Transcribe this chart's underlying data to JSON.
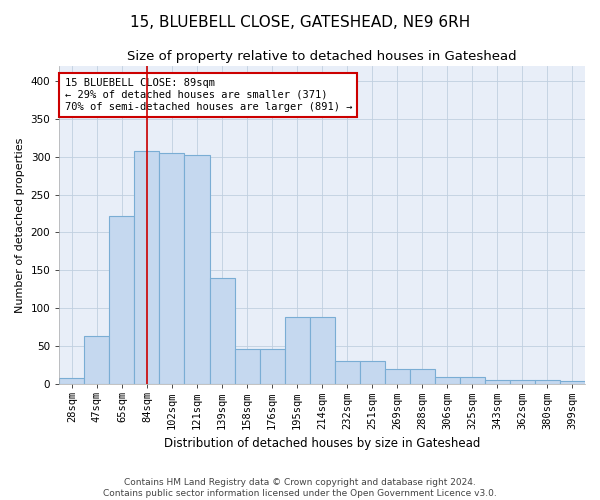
{
  "title": "15, BLUEBELL CLOSE, GATESHEAD, NE9 6RH",
  "subtitle": "Size of property relative to detached houses in Gateshead",
  "xlabel": "Distribution of detached houses by size in Gateshead",
  "ylabel": "Number of detached properties",
  "categories": [
    "28sqm",
    "47sqm",
    "65sqm",
    "84sqm",
    "102sqm",
    "121sqm",
    "139sqm",
    "158sqm",
    "176sqm",
    "195sqm",
    "214sqm",
    "232sqm",
    "251sqm",
    "269sqm",
    "288sqm",
    "306sqm",
    "325sqm",
    "343sqm",
    "362sqm",
    "380sqm",
    "399sqm"
  ],
  "values": [
    8,
    64,
    222,
    307,
    305,
    302,
    140,
    46,
    46,
    88,
    88,
    30,
    30,
    20,
    20,
    10,
    10,
    5,
    5,
    5,
    4
  ],
  "bar_color": "#c5d8ef",
  "bar_edge_color": "#7aadd4",
  "vline_x": 3,
  "vline_color": "#cc0000",
  "annotation_text": "15 BLUEBELL CLOSE: 89sqm\n← 29% of detached houses are smaller (371)\n70% of semi-detached houses are larger (891) →",
  "annotation_box_color": "#ffffff",
  "annotation_box_edge": "#cc0000",
  "grid_color": "#c0cfe0",
  "bg_color": "#e8eef8",
  "footnote": "Contains HM Land Registry data © Crown copyright and database right 2024.\nContains public sector information licensed under the Open Government Licence v3.0.",
  "title_fontsize": 11,
  "subtitle_fontsize": 9.5,
  "xlabel_fontsize": 8.5,
  "ylabel_fontsize": 8,
  "tick_fontsize": 7.5,
  "annot_fontsize": 7.5,
  "footnote_fontsize": 6.5,
  "ylim": [
    0,
    420
  ],
  "figsize": [
    6.0,
    5.0
  ],
  "dpi": 100
}
